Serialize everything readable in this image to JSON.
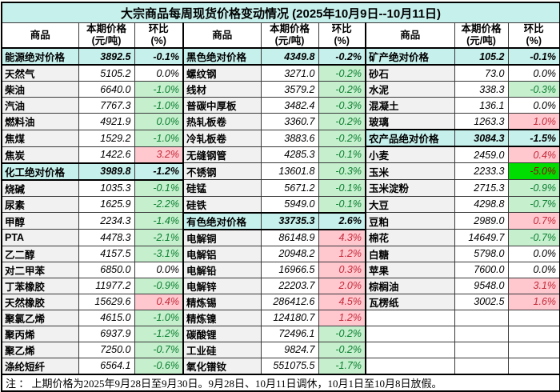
{
  "title": "大宗商品每周现货价格变动情况 (2025年10月9日--10月11日)",
  "header": {
    "commodity": "商品",
    "price_line1": "本期价格",
    "price_line2": "(元/吨)",
    "pct_line1": "环比",
    "pct_line2": "(%)"
  },
  "note": "注 ： 上期价格为2025年9月28日至9月30日。9月28日、10月11日调休，10月1日至10月8日放假。",
  "colors": {
    "section_band": "#c6f0ec",
    "decrease_bg": "#c6efce",
    "decrease_text": "#0b7f2f",
    "increase_bg": "#ffc7ce",
    "increase_text": "#c42b3b",
    "strong_decrease_bg": "#00dd00",
    "strong_decrease_text": "#9c0006",
    "commodity_col_bg": "#f1f1f1"
  },
  "groups": [
    {
      "rows": [
        {
          "name": "能源绝对价格",
          "price": "3892.5",
          "pct": "-0.1%",
          "kind": "section",
          "pct_style": "section"
        },
        {
          "name": "天然气",
          "price": "5105.2",
          "pct": "0.0%",
          "kind": "normal",
          "pct_style": "zero"
        },
        {
          "name": "柴油",
          "price": "6640.0",
          "pct": "-1.0%",
          "kind": "normal",
          "pct_style": "down"
        },
        {
          "name": "汽油",
          "price": "7767.3",
          "pct": "-1.0%",
          "kind": "normal",
          "pct_style": "down"
        },
        {
          "name": "燃料油",
          "price": "4921.9",
          "pct": "0.0%",
          "kind": "normal",
          "pct_style": "down"
        },
        {
          "name": "焦煤",
          "price": "1529.2",
          "pct": "-1.0%",
          "kind": "normal",
          "pct_style": "down"
        },
        {
          "name": "焦炭",
          "price": "1422.6",
          "pct": "3.2%",
          "kind": "normal",
          "pct_style": "up"
        },
        {
          "name": "化工绝对价格",
          "price": "3989.8",
          "pct": "-1.2%",
          "kind": "section",
          "pct_style": "section"
        },
        {
          "name": "烧碱",
          "price": "1035.3",
          "pct": "-0.1%",
          "kind": "normal",
          "pct_style": "down"
        },
        {
          "name": "尿素",
          "price": "1625.9",
          "pct": "-2.2%",
          "kind": "normal",
          "pct_style": "down"
        },
        {
          "name": "甲醇",
          "price": "2234.3",
          "pct": "-1.4%",
          "kind": "normal",
          "pct_style": "down"
        },
        {
          "name": "PTA",
          "price": "4478.3",
          "pct": "-2.1%",
          "kind": "normal",
          "pct_style": "down"
        },
        {
          "name": "乙二醇",
          "price": "4157.5",
          "pct": "-3.1%",
          "kind": "normal",
          "pct_style": "down"
        },
        {
          "name": "对二甲苯",
          "price": "6850.0",
          "pct": "0.0%",
          "kind": "normal",
          "pct_style": "zero"
        },
        {
          "name": "丁苯橡胶",
          "price": "11977.2",
          "pct": "-0.9%",
          "kind": "normal",
          "pct_style": "down"
        },
        {
          "name": "天然橡胶",
          "price": "15629.6",
          "pct": "0.4%",
          "kind": "normal",
          "pct_style": "up"
        },
        {
          "name": "聚氯乙烯",
          "price": "4615.0",
          "pct": "-1.0%",
          "kind": "normal",
          "pct_style": "down"
        },
        {
          "name": "聚丙烯",
          "price": "6937.9",
          "pct": "-1.2%",
          "kind": "normal",
          "pct_style": "down"
        },
        {
          "name": "聚乙烯",
          "price": "7250.0",
          "pct": "-0.7%",
          "kind": "normal",
          "pct_style": "down"
        },
        {
          "name": "涤纶短纤",
          "price": "6564.1",
          "pct": "-0.6%",
          "kind": "normal",
          "pct_style": "down"
        }
      ]
    },
    {
      "rows": [
        {
          "name": "黑色绝对价格",
          "price": "4349.8",
          "pct": "-0.2%",
          "kind": "section",
          "pct_style": "section"
        },
        {
          "name": "螺纹钢",
          "price": "3271.0",
          "pct": "-0.2%",
          "kind": "normal",
          "pct_style": "down"
        },
        {
          "name": "线材",
          "price": "3579.2",
          "pct": "-0.2%",
          "kind": "normal",
          "pct_style": "down"
        },
        {
          "name": "普碳中厚板",
          "price": "3482.4",
          "pct": "-0.3%",
          "kind": "normal",
          "pct_style": "down"
        },
        {
          "name": "热轧板卷",
          "price": "3360.7",
          "pct": "-0.2%",
          "kind": "normal",
          "pct_style": "down"
        },
        {
          "name": "冷轧板卷",
          "price": "3883.6",
          "pct": "-0.2%",
          "kind": "normal",
          "pct_style": "down"
        },
        {
          "name": "无缝钢管",
          "price": "4285.3",
          "pct": "-0.1%",
          "kind": "normal",
          "pct_style": "down"
        },
        {
          "name": "不锈钢",
          "price": "13601.8",
          "pct": "-0.3%",
          "kind": "normal",
          "pct_style": "down"
        },
        {
          "name": "硅锰",
          "price": "5671.2",
          "pct": "-0.1%",
          "kind": "normal",
          "pct_style": "down"
        },
        {
          "name": "硅铁",
          "price": "5949.0",
          "pct": "-0.1%",
          "kind": "normal",
          "pct_style": "down"
        },
        {
          "name": "有色绝对价格",
          "price": "33735.3",
          "pct": "2.6%",
          "kind": "section",
          "pct_style": "section"
        },
        {
          "name": "电解铜",
          "price": "86148.9",
          "pct": "4.3%",
          "kind": "normal",
          "pct_style": "up"
        },
        {
          "name": "电解铝",
          "price": "20948.2",
          "pct": "1.2%",
          "kind": "normal",
          "pct_style": "up"
        },
        {
          "name": "电解铅",
          "price": "16966.5",
          "pct": "0.3%",
          "kind": "normal",
          "pct_style": "up"
        },
        {
          "name": "电解锌",
          "price": "22203.7",
          "pct": "2.0%",
          "kind": "normal",
          "pct_style": "up"
        },
        {
          "name": "精炼锡",
          "price": "286412.6",
          "pct": "4.5%",
          "kind": "normal",
          "pct_style": "up"
        },
        {
          "name": "精炼镍",
          "price": "124180.7",
          "pct": "1.2%",
          "kind": "normal",
          "pct_style": "up"
        },
        {
          "name": "碳酸锂",
          "price": "72496.1",
          "pct": "-0.2%",
          "kind": "normal",
          "pct_style": "down"
        },
        {
          "name": "工业硅",
          "price": "9824.7",
          "pct": "-0.2%",
          "kind": "normal",
          "pct_style": "down"
        },
        {
          "name": "氧化镨钕",
          "price": "551075.5",
          "pct": "-1.7%",
          "kind": "normal",
          "pct_style": "down"
        }
      ]
    },
    {
      "rows": [
        {
          "name": "矿产绝对价格",
          "price": "105.2",
          "pct": "-0.1%",
          "kind": "section",
          "pct_style": "section"
        },
        {
          "name": "砂石",
          "price": "73.0",
          "pct": "0.0%",
          "kind": "normal",
          "pct_style": "zero"
        },
        {
          "name": "水泥",
          "price": "338.3",
          "pct": "-0.3%",
          "kind": "normal",
          "pct_style": "down"
        },
        {
          "name": "混凝土",
          "price": "136.1",
          "pct": "0.0%",
          "kind": "normal",
          "pct_style": "zero"
        },
        {
          "name": "玻璃",
          "price": "1263.3",
          "pct": "1.0%",
          "kind": "normal",
          "pct_style": "up"
        },
        {
          "name": "农产品绝对价格",
          "price": "3084.3",
          "pct": "-1.5%",
          "kind": "section",
          "pct_style": "section"
        },
        {
          "name": "小麦",
          "price": "2459.0",
          "pct": "0.4%",
          "kind": "normal",
          "pct_style": "up"
        },
        {
          "name": "玉米",
          "price": "2233.3",
          "pct": "-5.0%",
          "kind": "normal",
          "pct_style": "down-strong"
        },
        {
          "name": "玉米淀粉",
          "price": "2715.3",
          "pct": "-0.9%",
          "kind": "normal",
          "pct_style": "down"
        },
        {
          "name": "大豆",
          "price": "4298.8",
          "pct": "-0.7%",
          "kind": "normal",
          "pct_style": "down"
        },
        {
          "name": "豆粕",
          "price": "2989.0",
          "pct": "0.7%",
          "kind": "normal",
          "pct_style": "up"
        },
        {
          "name": "棉花",
          "price": "14649.7",
          "pct": "-0.7%",
          "kind": "normal",
          "pct_style": "down"
        },
        {
          "name": "白糖",
          "price": "5798.0",
          "pct": "0.0%",
          "kind": "normal",
          "pct_style": "zero"
        },
        {
          "name": "苹果",
          "price": "7600.0",
          "pct": "0.0%",
          "kind": "normal",
          "pct_style": "zero"
        },
        {
          "name": "棕榈油",
          "price": "9548.0",
          "pct": "3.1%",
          "kind": "normal",
          "pct_style": "up"
        },
        {
          "name": "瓦楞纸",
          "price": "3002.5",
          "pct": "1.6%",
          "kind": "normal",
          "pct_style": "up"
        },
        {
          "name": "",
          "price": "",
          "pct": "",
          "kind": "empty",
          "pct_style": "none"
        },
        {
          "name": "",
          "price": "",
          "pct": "",
          "kind": "empty",
          "pct_style": "none"
        },
        {
          "name": "",
          "price": "",
          "pct": "",
          "kind": "empty",
          "pct_style": "none"
        },
        {
          "name": "",
          "price": "",
          "pct": "",
          "kind": "empty",
          "pct_style": "none"
        }
      ]
    }
  ]
}
